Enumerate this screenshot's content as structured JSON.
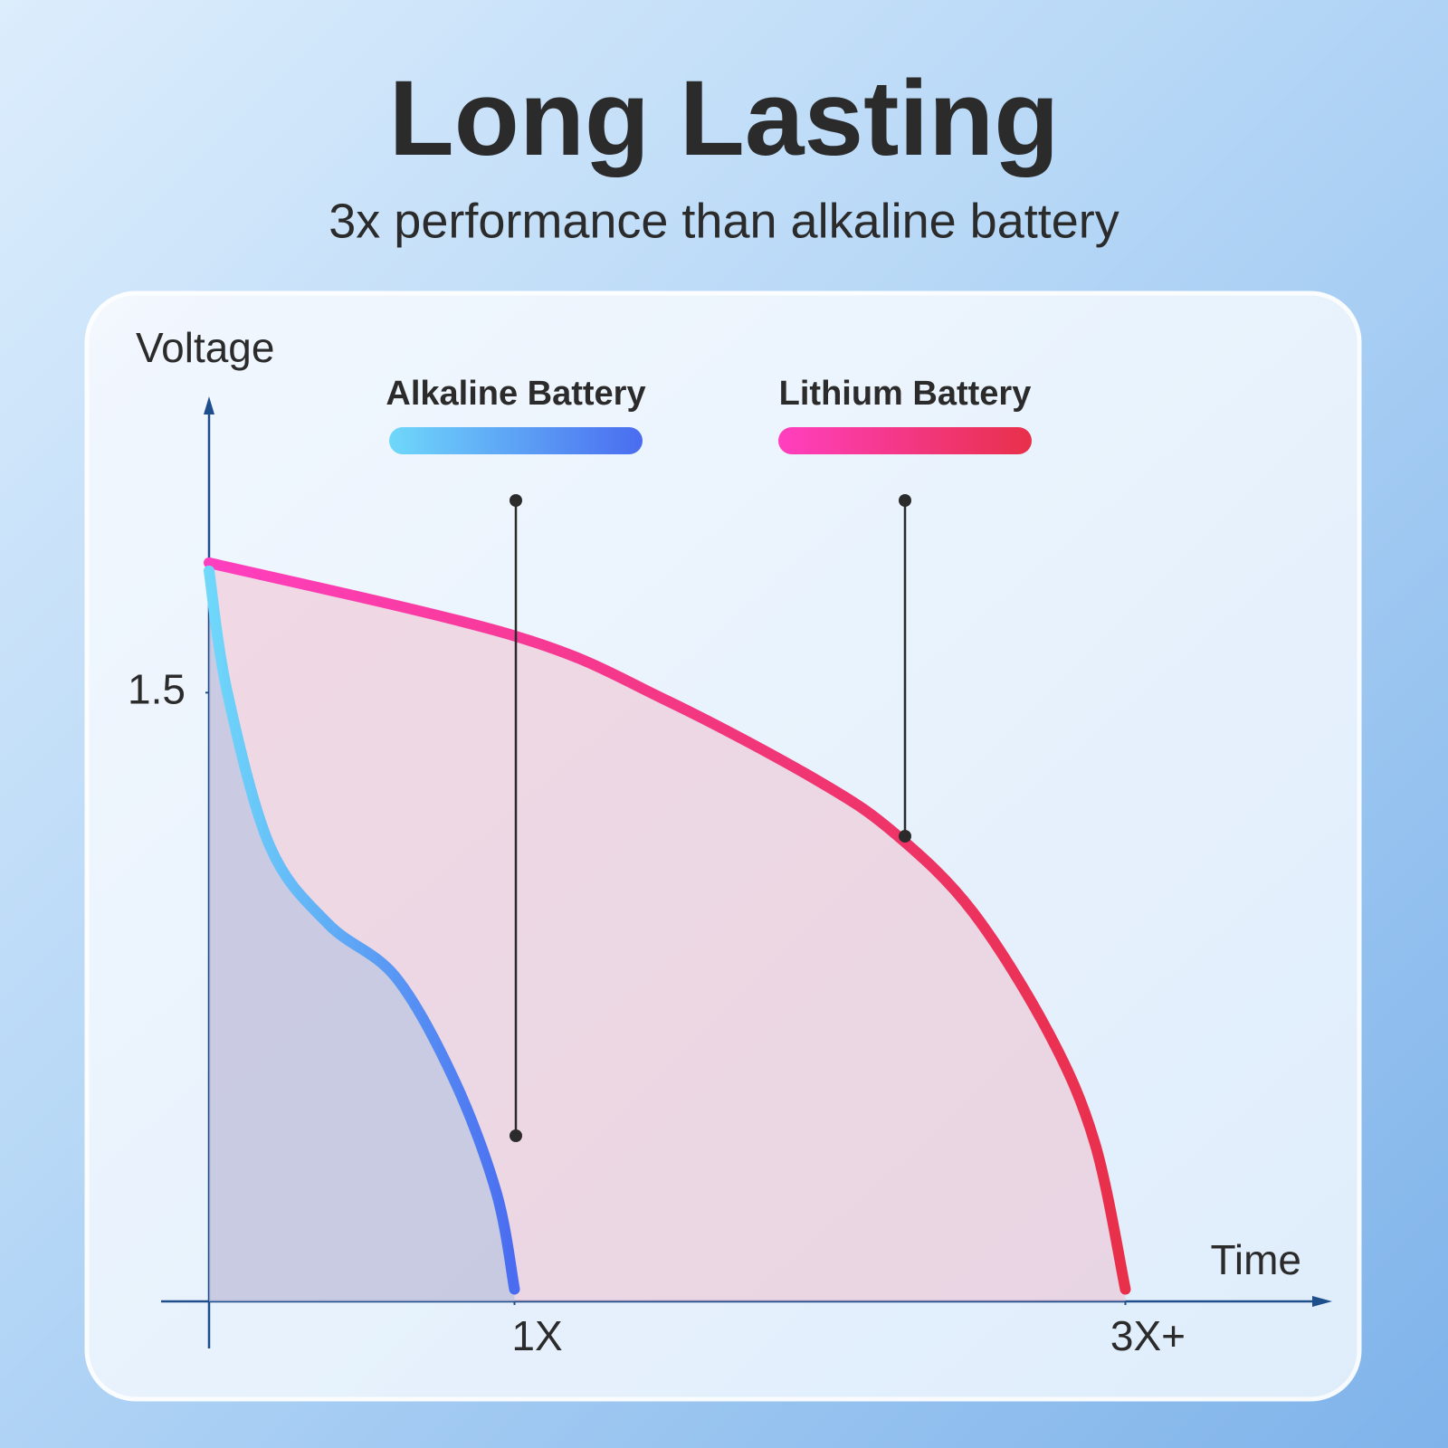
{
  "chart_data": {
    "type": "line",
    "title": "Long Lasting",
    "subtitle": "3x performance than alkaline battery",
    "y_label": "Voltage",
    "x_label": "Time",
    "xlim": [
      0,
      3.6
    ],
    "ylim": [
      0,
      2.23
    ],
    "xticks": [
      {
        "value": 1,
        "label": "1X"
      },
      {
        "value": 3,
        "label": "3X+"
      }
    ],
    "yticks": [
      1.5
    ],
    "grid": false,
    "series": [
      {
        "name": "Alkaline Battery",
        "color": [
          "#6fd8fa",
          "#4a6cf0"
        ],
        "x": [
          0,
          0.06,
          0.2,
          0.39,
          0.61,
          0.8,
          0.94,
          1
        ],
        "values": [
          1.8,
          1.5,
          1.12,
          0.93,
          0.8,
          0.55,
          0.27,
          0.03
        ]
      },
      {
        "name": "Lithium Battery",
        "color": [
          "#ff3fbf",
          "#e8304a"
        ],
        "x": [
          0,
          1,
          1.5,
          2,
          2.25,
          2.5,
          2.75,
          2.9,
          3
        ],
        "values": [
          1.82,
          1.64,
          1.48,
          1.28,
          1.15,
          0.96,
          0.66,
          0.39,
          0.03
        ]
      }
    ]
  }
}
